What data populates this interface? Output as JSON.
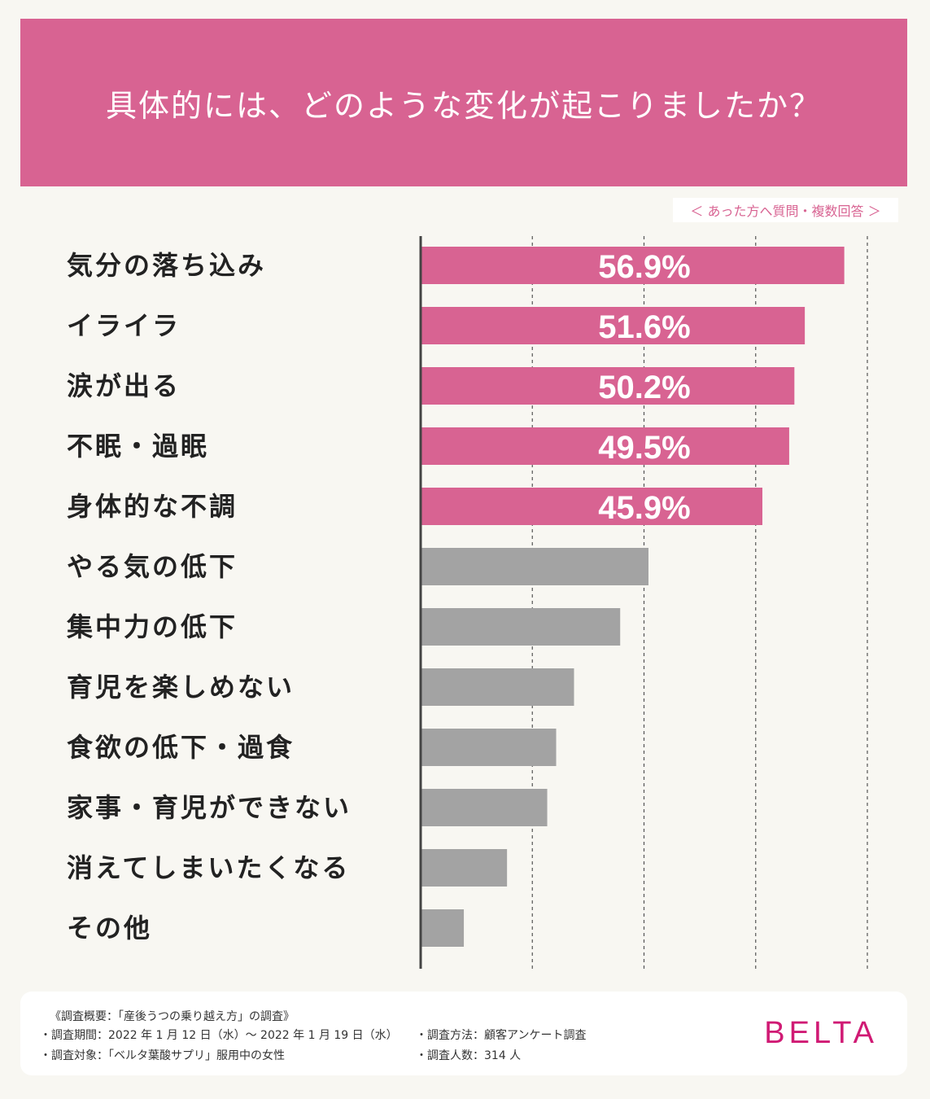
{
  "header": {
    "title": "具体的には、どのような変化が起こりましたか？"
  },
  "note": "＜ あった方へ質問・複数回答 ＞",
  "chart_data": {
    "type": "bar",
    "orientation": "horizontal",
    "title": "具体的には、どのような変化が起こりましたか？",
    "categories": [
      "気分の落ち込み",
      "イライラ",
      "涙が出る",
      "不眠・過眠",
      "身体的な不調",
      "やる気の低下",
      "集中力の低下",
      "育児を楽しめない",
      "食欲の低下・過食",
      "家事・育児ができない",
      "消えてしまいたくなる",
      "その他"
    ],
    "values": [
      56.9,
      51.6,
      50.2,
      49.5,
      45.9,
      30.6,
      26.8,
      20.6,
      18.2,
      17.0,
      11.6,
      5.8
    ],
    "value_labels": [
      "56.9%",
      "51.6%",
      "50.2%",
      "49.5%",
      "45.9%",
      "",
      "",
      "",
      "",
      "",
      "",
      ""
    ],
    "highlighted": [
      true,
      true,
      true,
      true,
      true,
      false,
      false,
      false,
      false,
      false,
      false,
      false
    ],
    "xlim": [
      0,
      60
    ],
    "gridlines": [
      0,
      15,
      30,
      45,
      60
    ],
    "colors": {
      "highlight": "#d86392",
      "normal": "#a3a3a3",
      "axis": "#444444",
      "label": "#222222"
    }
  },
  "footer": {
    "title": "《調査概要：「産後うつの乗り越え方」の調査》",
    "period": "・調査期間：2022 年 1 月 12 日（水）〜 2022 年 1 月 19 日（水）",
    "target": "・調査対象：「ベルタ葉酸サプリ」服用中の女性",
    "method": "・調査方法：顧客アンケート調査",
    "count": "・調査人数：314 人",
    "brand": "BELTA"
  }
}
